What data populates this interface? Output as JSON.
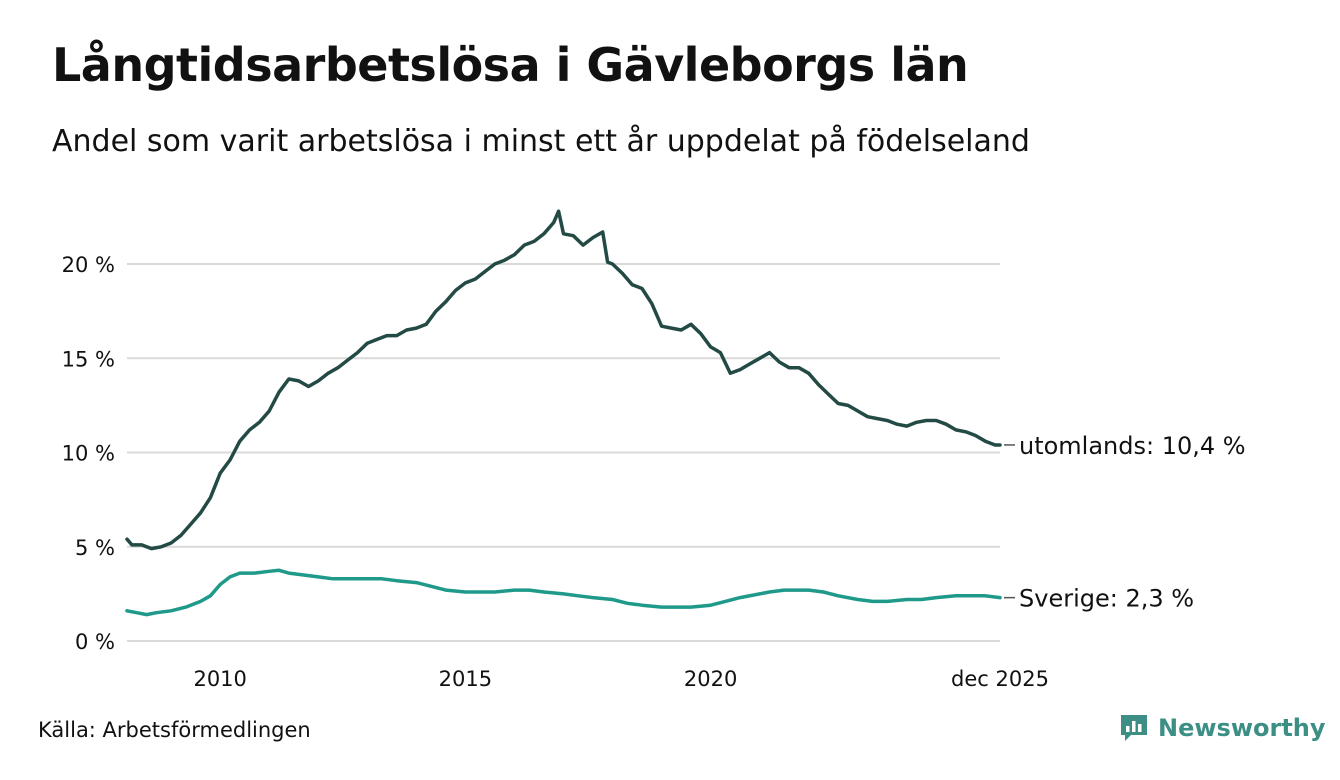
{
  "header": {
    "title": "Långtidsarbetslösa i Gävleborgs län",
    "subtitle": "Andel som varit arbetslösa i minst ett år uppdelat på födelseland"
  },
  "footer": {
    "source": "Källa: Arbetsförmedlingen",
    "brand": "Newsworthy"
  },
  "colors": {
    "utomlands": "#234a44",
    "sverige": "#1f9a8a",
    "grid": "#d9d9d9",
    "brand": "#3d8f86"
  },
  "chart_data": {
    "type": "line",
    "title": "Långtidsarbetslösa i Gävleborgs län",
    "xlabel": "",
    "ylabel": "",
    "xlim": [
      2008.1,
      2025.9
    ],
    "ylim": [
      0,
      23
    ],
    "x_ticks": [
      {
        "value": 2010,
        "label": "2010"
      },
      {
        "value": 2015,
        "label": "2015"
      },
      {
        "value": 2020,
        "label": "2020"
      },
      {
        "value": 2025.9,
        "label": "dec 2025"
      }
    ],
    "y_ticks": [
      {
        "value": 0,
        "label": "0 %"
      },
      {
        "value": 5,
        "label": "5 %"
      },
      {
        "value": 10,
        "label": "10 %"
      },
      {
        "value": 15,
        "label": "15 %"
      },
      {
        "value": 20,
        "label": "20 %"
      }
    ],
    "grid": true,
    "series": [
      {
        "name": "utomlands",
        "end_label": "utomlands: 10,4 %",
        "x": [
          2008.1,
          2008.2,
          2008.4,
          2008.6,
          2008.8,
          2009.0,
          2009.2,
          2009.4,
          2009.6,
          2009.8,
          2010.0,
          2010.2,
          2010.4,
          2010.6,
          2010.8,
          2011.0,
          2011.2,
          2011.4,
          2011.6,
          2011.8,
          2012.0,
          2012.2,
          2012.4,
          2012.6,
          2012.8,
          2013.0,
          2013.2,
          2013.4,
          2013.6,
          2013.8,
          2014.0,
          2014.2,
          2014.4,
          2014.6,
          2014.8,
          2015.0,
          2015.2,
          2015.4,
          2015.6,
          2015.8,
          2016.0,
          2016.2,
          2016.4,
          2016.6,
          2016.8,
          2016.9,
          2017.0,
          2017.2,
          2017.4,
          2017.6,
          2017.8,
          2017.9,
          2018.0,
          2018.2,
          2018.4,
          2018.6,
          2018.8,
          2019.0,
          2019.2,
          2019.4,
          2019.6,
          2019.8,
          2020.0,
          2020.2,
          2020.4,
          2020.6,
          2020.8,
          2021.0,
          2021.2,
          2021.4,
          2021.6,
          2021.8,
          2022.0,
          2022.2,
          2022.4,
          2022.6,
          2022.8,
          2023.0,
          2023.2,
          2023.4,
          2023.6,
          2023.8,
          2024.0,
          2024.2,
          2024.4,
          2024.6,
          2024.8,
          2025.0,
          2025.2,
          2025.4,
          2025.6,
          2025.8,
          2025.9
        ],
        "values": [
          5.4,
          5.1,
          5.1,
          4.9,
          5.0,
          5.2,
          5.6,
          6.2,
          6.8,
          7.6,
          8.9,
          9.6,
          10.6,
          11.2,
          11.6,
          12.2,
          13.2,
          13.9,
          13.8,
          13.5,
          13.8,
          14.2,
          14.5,
          14.9,
          15.3,
          15.8,
          16.0,
          16.2,
          16.2,
          16.5,
          16.6,
          16.8,
          17.5,
          18.0,
          18.6,
          19.0,
          19.2,
          19.6,
          20.0,
          20.2,
          20.5,
          21.0,
          21.2,
          21.6,
          22.2,
          22.8,
          21.6,
          21.5,
          21.0,
          21.4,
          21.7,
          20.1,
          20.0,
          19.5,
          18.9,
          18.7,
          17.9,
          16.7,
          16.6,
          16.5,
          16.8,
          16.3,
          15.6,
          15.3,
          14.2,
          14.4,
          14.7,
          15.0,
          15.3,
          14.8,
          14.5,
          14.5,
          14.2,
          13.6,
          13.1,
          12.6,
          12.5,
          12.2,
          11.9,
          11.8,
          11.7,
          11.5,
          11.4,
          11.6,
          11.7,
          11.7,
          11.5,
          11.2,
          11.1,
          10.9,
          10.6,
          10.4,
          10.4
        ]
      },
      {
        "name": "Sverige",
        "end_label": "Sverige:  2,3 %",
        "x": [
          2008.1,
          2008.3,
          2008.5,
          2008.7,
          2009.0,
          2009.3,
          2009.6,
          2009.8,
          2010.0,
          2010.2,
          2010.4,
          2010.7,
          2011.0,
          2011.2,
          2011.4,
          2011.7,
          2012.0,
          2012.3,
          2012.6,
          2013.0,
          2013.3,
          2013.6,
          2014.0,
          2014.3,
          2014.6,
          2015.0,
          2015.3,
          2015.6,
          2016.0,
          2016.3,
          2016.6,
          2017.0,
          2017.3,
          2017.6,
          2018.0,
          2018.3,
          2018.6,
          2019.0,
          2019.3,
          2019.6,
          2020.0,
          2020.3,
          2020.6,
          2021.0,
          2021.2,
          2021.5,
          2021.8,
          2022.0,
          2022.3,
          2022.6,
          2023.0,
          2023.3,
          2023.6,
          2024.0,
          2024.3,
          2024.6,
          2025.0,
          2025.3,
          2025.6,
          2025.9
        ],
        "values": [
          1.6,
          1.5,
          1.4,
          1.5,
          1.6,
          1.8,
          2.1,
          2.4,
          3.0,
          3.4,
          3.6,
          3.6,
          3.7,
          3.75,
          3.6,
          3.5,
          3.4,
          3.3,
          3.3,
          3.3,
          3.3,
          3.2,
          3.1,
          2.9,
          2.7,
          2.6,
          2.6,
          2.6,
          2.7,
          2.7,
          2.6,
          2.5,
          2.4,
          2.3,
          2.2,
          2.0,
          1.9,
          1.8,
          1.8,
          1.8,
          1.9,
          2.1,
          2.3,
          2.5,
          2.6,
          2.7,
          2.7,
          2.7,
          2.6,
          2.4,
          2.2,
          2.1,
          2.1,
          2.2,
          2.2,
          2.3,
          2.4,
          2.4,
          2.4,
          2.3
        ]
      }
    ]
  }
}
